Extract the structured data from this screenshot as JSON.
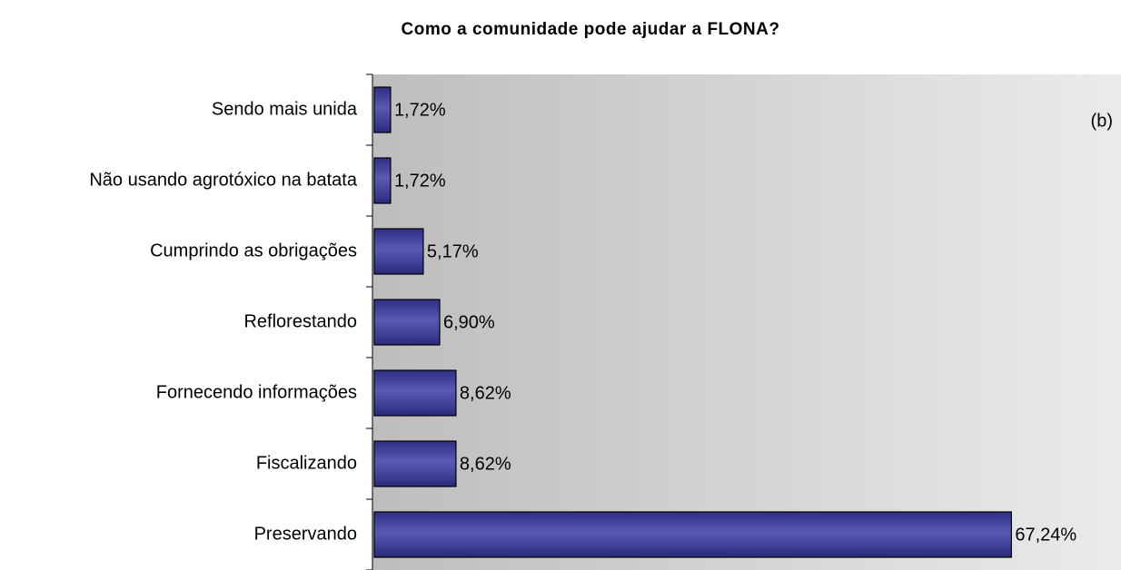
{
  "chart_data": {
    "type": "barh",
    "title": "Como a comunidade pode ajudar a FLONA?",
    "annotation": "(b)",
    "categories": [
      "Sendo mais unida",
      "Não usando agrotóxico na batata",
      "Cumprindo as obrigações",
      "Reflorestando",
      "Fornecendo informações",
      "Fiscalizando",
      "Preservando"
    ],
    "values": [
      1.72,
      1.72,
      5.17,
      6.9,
      8.62,
      8.62,
      67.24
    ],
    "value_labels": [
      "1,72%",
      "1,72%",
      "5,17%",
      "6,90%",
      "8,62%",
      "8,62%",
      "67,24%"
    ],
    "color": "#3c3c9c",
    "xlim": [
      0,
      79
    ]
  }
}
